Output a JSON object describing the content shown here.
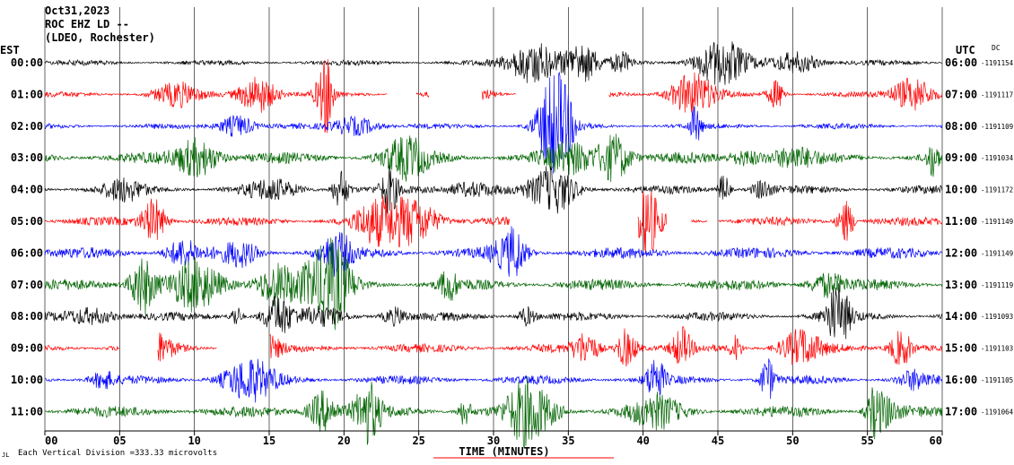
{
  "header": {
    "line1": "Oct31,2023",
    "line2": "ROC EHZ LD --",
    "line3": "(LDEO, Rochester)"
  },
  "left_zone": "EST",
  "right_zone": "UTC",
  "dc_label": "DC",
  "footer": {
    "scale_prefix": "Each Vertical Division =",
    "scale_value": "333.33 microvolts",
    "mark": "JL"
  },
  "chart_data": {
    "type": "line",
    "title": "",
    "xlabel": "TIME (MINUTES)",
    "ylabel": "",
    "xlim": [
      0,
      60
    ],
    "x_ticks": [
      {
        "value": 0,
        "label": "00"
      },
      {
        "value": 5,
        "label": "05"
      },
      {
        "value": 10,
        "label": "10"
      },
      {
        "value": 15,
        "label": "15"
      },
      {
        "value": 20,
        "label": "20"
      },
      {
        "value": 25,
        "label": "25"
      },
      {
        "value": 30,
        "label": "30"
      },
      {
        "value": 35,
        "label": "35"
      },
      {
        "value": 40,
        "label": "40"
      },
      {
        "value": 45,
        "label": "45"
      },
      {
        "value": 50,
        "label": "50"
      },
      {
        "value": 55,
        "label": "55"
      },
      {
        "value": 60,
        "label": "60"
      }
    ],
    "grid": true,
    "rows": [
      {
        "left": "00:00",
        "right": "06:00",
        "dc": "-1191154",
        "color": "#000000",
        "gaps": []
      },
      {
        "left": "01:00",
        "right": "07:00",
        "dc": "-1191117",
        "color": "#ff0000",
        "gaps": [
          [
            22.9,
            24.8
          ],
          [
            25.7,
            29.2
          ],
          [
            31.5,
            37.7
          ]
        ]
      },
      {
        "left": "02:00",
        "right": "08:00",
        "dc": "-1191109",
        "color": "#0000ff",
        "gaps": []
      },
      {
        "left": "03:00",
        "right": "09:00",
        "dc": "-1191034",
        "color": "#006400",
        "gaps": []
      },
      {
        "left": "04:00",
        "right": "10:00",
        "dc": "-1191172",
        "color": "#000000",
        "gaps": []
      },
      {
        "left": "05:00",
        "right": "11:00",
        "dc": "-1191149",
        "color": "#ff0000",
        "gaps": [
          [
            31.1,
            39.6
          ],
          [
            41.6,
            43.2
          ],
          [
            44.3,
            45.0
          ]
        ]
      },
      {
        "left": "06:00",
        "right": "12:00",
        "dc": "-1191149",
        "color": "#0000ff",
        "gaps": []
      },
      {
        "left": "07:00",
        "right": "13:00",
        "dc": "-1191119",
        "color": "#006400",
        "gaps": []
      },
      {
        "left": "08:00",
        "right": "14:00",
        "dc": "-1191093",
        "color": "#000000",
        "gaps": []
      },
      {
        "left": "09:00",
        "right": "15:00",
        "dc": "-1191103",
        "color": "#ff0000",
        "gaps": [
          [
            5.0,
            7.5
          ],
          [
            11.5,
            15.0
          ]
        ]
      },
      {
        "left": "10:00",
        "right": "16:00",
        "dc": "-1191105",
        "color": "#0000ff",
        "gaps": []
      },
      {
        "left": "11:00",
        "right": "17:00",
        "dc": "-1191064",
        "color": "#006400",
        "gaps": []
      }
    ]
  }
}
